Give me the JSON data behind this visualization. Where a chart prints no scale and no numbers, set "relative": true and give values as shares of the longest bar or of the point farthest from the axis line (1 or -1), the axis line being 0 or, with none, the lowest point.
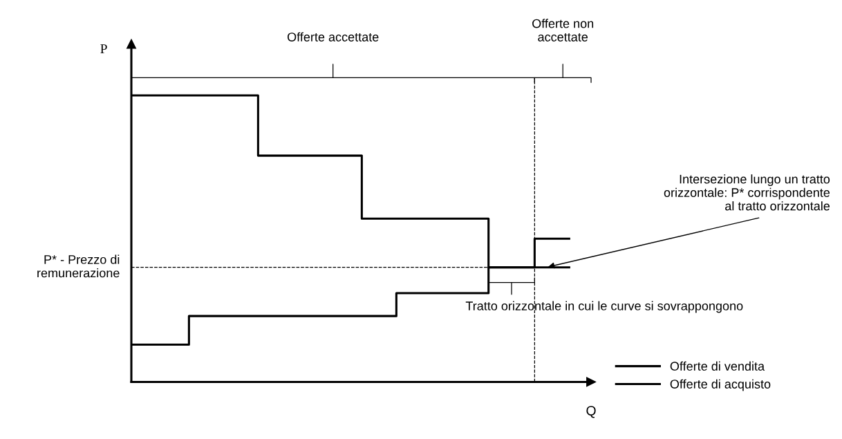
{
  "chart_data": {
    "type": "step",
    "relative": true,
    "xlabel": "Q",
    "ylabel": "P",
    "categories": [
      null,
      null,
      null,
      null,
      null,
      null,
      null,
      null,
      null,
      null,
      null,
      null,
      null,
      null,
      null,
      null,
      null,
      null,
      null,
      null,
      null,
      null,
      null,
      null,
      null,
      null,
      null,
      null,
      null,
      null,
      null,
      null,
      null,
      null,
      null,
      null,
      null,
      null,
      null
    ],
    "series": [
      {
        "name": "Offerte di vendita",
        "color": "#000000",
        "values": [
          0.13,
          0.13,
          0.13,
          0.13,
          0.13,
          0.23,
          0.23,
          0.23,
          0.23,
          0.23,
          0.23,
          0.23,
          0.23,
          0.23,
          0.23,
          0.23,
          0.23,
          0.23,
          0.23,
          0.23,
          0.23,
          0.23,
          0.23,
          0.31,
          0.31,
          0.31,
          0.31,
          0.31,
          0.31,
          0.31,
          0.31,
          0.4,
          0.4,
          0.4,
          0.4,
          0.5,
          0.5,
          0.5,
          0.5
        ]
      },
      {
        "name": "Offerte di acquisto",
        "color": "#000000",
        "values": [
          1,
          1,
          1,
          1,
          1,
          1,
          1,
          1,
          1,
          1,
          1,
          0.79,
          0.79,
          0.79,
          0.79,
          0.79,
          0.79,
          0.79,
          0.79,
          0.79,
          0.57,
          0.57,
          0.57,
          0.57,
          0.57,
          0.57,
          0.57,
          0.57,
          0.57,
          0.57,
          0.57,
          0.4,
          0.4,
          0.4,
          0.4,
          0.4,
          0.4,
          0.4,
          0.4
        ]
      }
    ],
    "ref_lines": [
      {
        "axis": "y",
        "value": 0.4,
        "label": "P* - Prezzo di\nremunerazione",
        "line_style": "dashed",
        "color": "#000000"
      }
    ],
    "annotations": [
      "Offerte accettate",
      "Offerte non\naccettate",
      "Intersezione lungo un tratto\norizzontale: P* corrispondente\nal tratto orizzontale",
      "Tratto orizzontale in cui le curve si sovrappongono"
    ],
    "legend": "bottom right",
    "line_style": "solid",
    "marker": "none"
  }
}
